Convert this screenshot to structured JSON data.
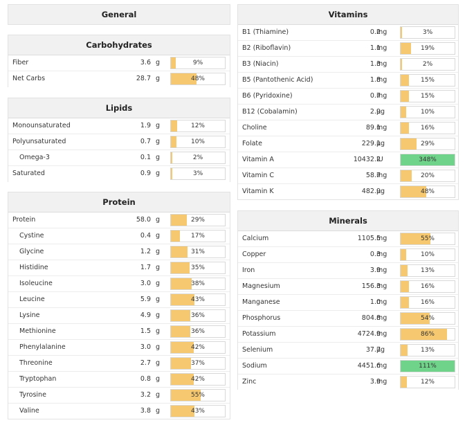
{
  "general": {
    "title": "General"
  },
  "carbohydrates": {
    "title": "Carbohydrates",
    "rows": [
      {
        "name": "Fiber",
        "value": "3.6",
        "unit": "g",
        "percent_label": "9%",
        "fill": 9
      },
      {
        "name": "Net Carbs",
        "value": "28.7",
        "unit": "g",
        "percent_label": "48%",
        "fill": 48
      }
    ]
  },
  "lipids": {
    "title": "Lipids",
    "rows": [
      {
        "name": "Monounsaturated",
        "value": "1.9",
        "unit": "g",
        "percent_label": "12%",
        "fill": 12
      },
      {
        "name": "Polyunsaturated",
        "value": "0.7",
        "unit": "g",
        "percent_label": "10%",
        "fill": 10
      },
      {
        "name": "Omega-3",
        "value": "0.1",
        "unit": "g",
        "percent_label": "2%",
        "fill": 2,
        "indent": true
      },
      {
        "name": "Saturated",
        "value": "0.9",
        "unit": "g",
        "percent_label": "3%",
        "fill": 3
      }
    ]
  },
  "protein": {
    "title": "Protein",
    "rows": [
      {
        "name": "Protein",
        "value": "58.0",
        "unit": "g",
        "percent_label": "29%",
        "fill": 29
      },
      {
        "name": "Cystine",
        "value": "0.4",
        "unit": "g",
        "percent_label": "17%",
        "fill": 17,
        "indent": true
      },
      {
        "name": "Glycine",
        "value": "1.2",
        "unit": "g",
        "percent_label": "31%",
        "fill": 31,
        "indent": true
      },
      {
        "name": "Histidine",
        "value": "1.7",
        "unit": "g",
        "percent_label": "35%",
        "fill": 35,
        "indent": true
      },
      {
        "name": "Isoleucine",
        "value": "3.0",
        "unit": "g",
        "percent_label": "38%",
        "fill": 38,
        "indent": true
      },
      {
        "name": "Leucine",
        "value": "5.9",
        "unit": "g",
        "percent_label": "43%",
        "fill": 43,
        "indent": true
      },
      {
        "name": "Lysine",
        "value": "4.9",
        "unit": "g",
        "percent_label": "36%",
        "fill": 36,
        "indent": true
      },
      {
        "name": "Methionine",
        "value": "1.5",
        "unit": "g",
        "percent_label": "36%",
        "fill": 36,
        "indent": true
      },
      {
        "name": "Phenylalanine",
        "value": "3.0",
        "unit": "g",
        "percent_label": "42%",
        "fill": 42,
        "indent": true
      },
      {
        "name": "Threonine",
        "value": "2.7",
        "unit": "g",
        "percent_label": "37%",
        "fill": 37,
        "indent": true
      },
      {
        "name": "Tryptophan",
        "value": "0.8",
        "unit": "g",
        "percent_label": "42%",
        "fill": 42,
        "indent": true
      },
      {
        "name": "Tyrosine",
        "value": "3.2",
        "unit": "g",
        "percent_label": "55%",
        "fill": 55,
        "indent": true
      },
      {
        "name": "Valine",
        "value": "3.8",
        "unit": "g",
        "percent_label": "43%",
        "fill": 43,
        "indent": true
      }
    ]
  },
  "vitamins": {
    "title": "Vitamins",
    "rows": [
      {
        "name": "B1 (Thiamine)",
        "value": "0.2",
        "unit": "mg",
        "percent_label": "3%",
        "fill": 3
      },
      {
        "name": "B2 (Riboflavin)",
        "value": "1.1",
        "unit": "mg",
        "percent_label": "19%",
        "fill": 19
      },
      {
        "name": "B3 (Niacin)",
        "value": "1.3",
        "unit": "mg",
        "percent_label": "2%",
        "fill": 2
      },
      {
        "name": "B5 (Pantothenic Acid)",
        "value": "1.8",
        "unit": "mg",
        "percent_label": "15%",
        "fill": 15
      },
      {
        "name": "B6 (Pyridoxine)",
        "value": "0.7",
        "unit": "mg",
        "percent_label": "15%",
        "fill": 15
      },
      {
        "name": "B12 (Cobalamin)",
        "value": "2.9",
        "unit": "µg",
        "percent_label": "10%",
        "fill": 10
      },
      {
        "name": "Choline",
        "value": "89.1",
        "unit": "mg",
        "percent_label": "16%",
        "fill": 16
      },
      {
        "name": "Folate",
        "value": "229.1",
        "unit": "µg",
        "percent_label": "29%",
        "fill": 29
      },
      {
        "name": "Vitamin A",
        "value": "10432.2",
        "unit": "IU",
        "percent_label": "348%",
        "fill": 100,
        "over": true
      },
      {
        "name": "Vitamin C",
        "value": "58.7",
        "unit": "mg",
        "percent_label": "20%",
        "fill": 20
      },
      {
        "name": "Vitamin K",
        "value": "482.9",
        "unit": "µg",
        "percent_label": "48%",
        "fill": 48
      }
    ]
  },
  "minerals": {
    "title": "Minerals",
    "rows": [
      {
        "name": "Calcium",
        "value": "1105.5",
        "unit": "mg",
        "percent_label": "55%",
        "fill": 55
      },
      {
        "name": "Copper",
        "value": "0.3",
        "unit": "mg",
        "percent_label": "10%",
        "fill": 10
      },
      {
        "name": "Iron",
        "value": "3.9",
        "unit": "mg",
        "percent_label": "13%",
        "fill": 13
      },
      {
        "name": "Magnesium",
        "value": "156.3",
        "unit": "mg",
        "percent_label": "16%",
        "fill": 16
      },
      {
        "name": "Manganese",
        "value": "1.0",
        "unit": "mg",
        "percent_label": "16%",
        "fill": 16
      },
      {
        "name": "Phosphorus",
        "value": "804.8",
        "unit": "mg",
        "percent_label": "54%",
        "fill": 54
      },
      {
        "name": "Potassium",
        "value": "4724.9",
        "unit": "mg",
        "percent_label": "86%",
        "fill": 86
      },
      {
        "name": "Selenium",
        "value": "37.7",
        "unit": "µg",
        "percent_label": "13%",
        "fill": 13
      },
      {
        "name": "Sodium",
        "value": "4451.6",
        "unit": "mg",
        "percent_label": "111%",
        "fill": 100,
        "over": true
      },
      {
        "name": "Zinc",
        "value": "3.9",
        "unit": "mg",
        "percent_label": "12%",
        "fill": 12
      }
    ]
  },
  "colors": {
    "bar_fill": "#f6c86f",
    "bar_over": "#6fd38a"
  }
}
